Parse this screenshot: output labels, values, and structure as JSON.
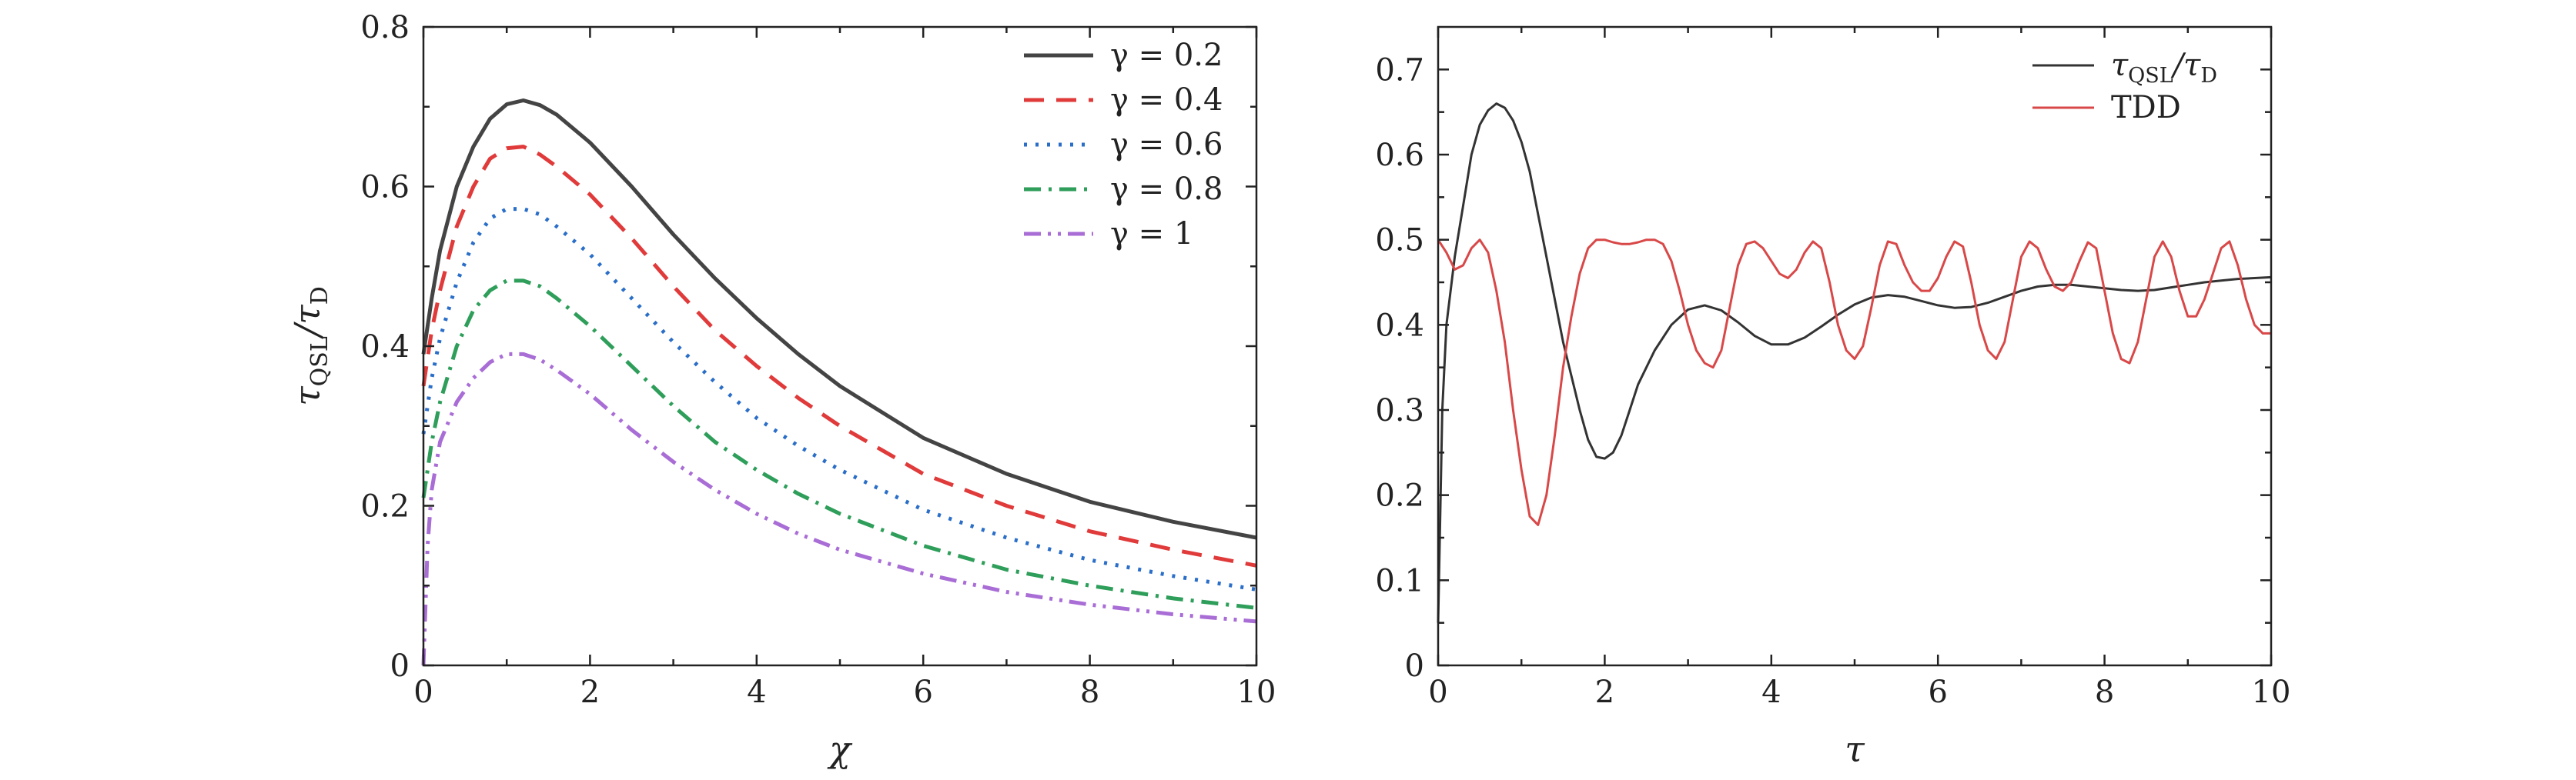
{
  "chart_data": [
    {
      "type": "line",
      "xlabel": "χ",
      "ylabel": "τ_QSL/τ_D",
      "ylabel_main": "τ",
      "ylabel_sub1": "QSL",
      "ylabel_mid": "/τ",
      "ylabel_sub2": "D",
      "xlim": [
        0,
        10
      ],
      "ylim": [
        0,
        0.8
      ],
      "xticks": [
        "0",
        "2",
        "4",
        "6",
        "8",
        "10"
      ],
      "yticks": [
        "0",
        "0.2",
        "0.4",
        "0.6",
        "0.8"
      ],
      "legend_position": "top-right",
      "series": [
        {
          "name": "γ = 0.2",
          "color": "#444444",
          "dash": "solid",
          "x": [
            0,
            0.1,
            0.2,
            0.4,
            0.6,
            0.8,
            1.0,
            1.2,
            1.4,
            1.6,
            2,
            2.5,
            3,
            3.5,
            4,
            4.5,
            5,
            6,
            7,
            8,
            9,
            10
          ],
          "y": [
            0.39,
            0.46,
            0.52,
            0.6,
            0.65,
            0.685,
            0.703,
            0.708,
            0.702,
            0.69,
            0.655,
            0.6,
            0.54,
            0.485,
            0.435,
            0.39,
            0.35,
            0.285,
            0.24,
            0.205,
            0.18,
            0.16
          ]
        },
        {
          "name": "γ = 0.4",
          "color": "#e03a3a",
          "dash": "dashed",
          "x": [
            0,
            0.1,
            0.2,
            0.4,
            0.6,
            0.8,
            1.0,
            1.2,
            1.4,
            1.6,
            2,
            2.5,
            3,
            3.5,
            4,
            4.5,
            5,
            6,
            7,
            8,
            9,
            10
          ],
          "y": [
            0.35,
            0.42,
            0.47,
            0.55,
            0.6,
            0.635,
            0.648,
            0.65,
            0.64,
            0.625,
            0.59,
            0.535,
            0.475,
            0.42,
            0.375,
            0.335,
            0.3,
            0.24,
            0.2,
            0.168,
            0.145,
            0.125
          ]
        },
        {
          "name": "γ = 0.6",
          "color": "#2a6ec8",
          "dash": "dotted",
          "x": [
            0,
            0.1,
            0.2,
            0.4,
            0.6,
            0.8,
            1.0,
            1.2,
            1.4,
            1.6,
            2,
            2.5,
            3,
            3.5,
            4,
            4.5,
            5,
            6,
            7,
            8,
            9,
            10
          ],
          "y": [
            0.29,
            0.36,
            0.41,
            0.48,
            0.53,
            0.56,
            0.572,
            0.572,
            0.565,
            0.55,
            0.515,
            0.46,
            0.405,
            0.355,
            0.31,
            0.275,
            0.245,
            0.195,
            0.16,
            0.132,
            0.112,
            0.095
          ]
        },
        {
          "name": "γ = 0.8",
          "color": "#2e9e5a",
          "dash": "dashdot",
          "x": [
            0,
            0.1,
            0.2,
            0.4,
            0.6,
            0.8,
            1.0,
            1.2,
            1.4,
            1.6,
            2,
            2.5,
            3,
            3.5,
            4,
            4.5,
            5,
            6,
            7,
            8,
            9,
            10
          ],
          "y": [
            0.21,
            0.28,
            0.33,
            0.4,
            0.445,
            0.47,
            0.482,
            0.482,
            0.475,
            0.46,
            0.425,
            0.375,
            0.325,
            0.28,
            0.245,
            0.215,
            0.19,
            0.15,
            0.12,
            0.1,
            0.084,
            0.072
          ]
        },
        {
          "name": "γ = 1",
          "color": "#a96dd6",
          "dash": "dashdotdot",
          "x": [
            0,
            0.05,
            0.1,
            0.2,
            0.4,
            0.6,
            0.8,
            1.0,
            1.2,
            1.4,
            1.6,
            2,
            2.5,
            3,
            3.5,
            4,
            4.5,
            5,
            6,
            7,
            8,
            9,
            10
          ],
          "y": [
            0.0,
            0.15,
            0.22,
            0.28,
            0.33,
            0.36,
            0.38,
            0.39,
            0.39,
            0.383,
            0.37,
            0.34,
            0.295,
            0.255,
            0.22,
            0.19,
            0.165,
            0.145,
            0.115,
            0.092,
            0.076,
            0.064,
            0.055
          ]
        }
      ]
    },
    {
      "type": "line",
      "xlabel": "τ",
      "ylabel": "",
      "xlim": [
        0,
        10
      ],
      "ylim": [
        0,
        0.75
      ],
      "xticks": [
        "0",
        "2",
        "4",
        "6",
        "8",
        "10"
      ],
      "yticks": [
        "0",
        "0.1",
        "0.2",
        "0.3",
        "0.4",
        "0.5",
        "0.6",
        "0.7"
      ],
      "legend_position": "top-right",
      "series": [
        {
          "name": "τ_QSL/τ_D",
          "name_main": "τ",
          "name_sub1": "QSL",
          "name_mid": "/τ",
          "name_sub2": "D",
          "color": "#333333",
          "dash": "solid",
          "x": [
            0,
            0.05,
            0.1,
            0.2,
            0.3,
            0.4,
            0.5,
            0.6,
            0.7,
            0.8,
            0.9,
            1.0,
            1.1,
            1.2,
            1.3,
            1.4,
            1.5,
            1.6,
            1.7,
            1.8,
            1.9,
            2.0,
            2.1,
            2.2,
            2.3,
            2.4,
            2.6,
            2.8,
            3.0,
            3.2,
            3.4,
            3.6,
            3.8,
            4.0,
            4.2,
            4.4,
            4.6,
            4.8,
            5.0,
            5.2,
            5.4,
            5.6,
            5.8,
            6.0,
            6.2,
            6.4,
            6.6,
            6.8,
            7.0,
            7.2,
            7.4,
            7.6,
            7.8,
            8.0,
            8.2,
            8.4,
            8.6,
            8.8,
            9.0,
            9.2,
            9.4,
            9.6,
            9.8,
            10.0
          ],
          "y": [
            0.05,
            0.3,
            0.4,
            0.48,
            0.54,
            0.6,
            0.635,
            0.652,
            0.66,
            0.655,
            0.64,
            0.615,
            0.58,
            0.53,
            0.48,
            0.43,
            0.38,
            0.34,
            0.3,
            0.265,
            0.245,
            0.243,
            0.25,
            0.27,
            0.3,
            0.33,
            0.37,
            0.4,
            0.418,
            0.423,
            0.417,
            0.403,
            0.387,
            0.377,
            0.377,
            0.385,
            0.398,
            0.412,
            0.424,
            0.432,
            0.435,
            0.433,
            0.428,
            0.423,
            0.42,
            0.421,
            0.426,
            0.433,
            0.44,
            0.445,
            0.447,
            0.447,
            0.445,
            0.443,
            0.441,
            0.44,
            0.441,
            0.444,
            0.447,
            0.45,
            0.452,
            0.454,
            0.455,
            0.456
          ]
        },
        {
          "name": "TDD",
          "color": "#d94848",
          "dash": "solid",
          "x": [
            0,
            0.1,
            0.2,
            0.3,
            0.4,
            0.5,
            0.6,
            0.7,
            0.8,
            0.9,
            1.0,
            1.1,
            1.2,
            1.3,
            1.4,
            1.5,
            1.6,
            1.7,
            1.8,
            1.9,
            2.0,
            2.1,
            2.2,
            2.3,
            2.4,
            2.5,
            2.6,
            2.7,
            2.8,
            2.9,
            3.0,
            3.1,
            3.2,
            3.3,
            3.4,
            3.5,
            3.6,
            3.7,
            3.8,
            3.9,
            4.0,
            4.1,
            4.2,
            4.3,
            4.4,
            4.5,
            4.6,
            4.7,
            4.8,
            4.9,
            5.0,
            5.1,
            5.2,
            5.3,
            5.4,
            5.5,
            5.6,
            5.7,
            5.8,
            5.9,
            6.0,
            6.1,
            6.2,
            6.3,
            6.4,
            6.5,
            6.6,
            6.7,
            6.8,
            6.9,
            7.0,
            7.1,
            7.2,
            7.3,
            7.4,
            7.5,
            7.6,
            7.7,
            7.8,
            7.9,
            8.0,
            8.1,
            8.2,
            8.3,
            8.4,
            8.5,
            8.6,
            8.7,
            8.8,
            8.9,
            9.0,
            9.1,
            9.2,
            9.3,
            9.4,
            9.5,
            9.6,
            9.7,
            9.8,
            9.9,
            10.0
          ],
          "y": [
            0.5,
            0.485,
            0.465,
            0.47,
            0.49,
            0.5,
            0.485,
            0.44,
            0.38,
            0.3,
            0.23,
            0.175,
            0.165,
            0.2,
            0.27,
            0.35,
            0.41,
            0.46,
            0.49,
            0.5,
            0.5,
            0.497,
            0.495,
            0.495,
            0.497,
            0.5,
            0.5,
            0.495,
            0.475,
            0.44,
            0.4,
            0.37,
            0.355,
            0.35,
            0.37,
            0.42,
            0.47,
            0.495,
            0.498,
            0.49,
            0.475,
            0.46,
            0.455,
            0.465,
            0.485,
            0.498,
            0.49,
            0.45,
            0.4,
            0.37,
            0.36,
            0.375,
            0.42,
            0.47,
            0.498,
            0.495,
            0.47,
            0.45,
            0.44,
            0.44,
            0.455,
            0.48,
            0.498,
            0.492,
            0.45,
            0.4,
            0.37,
            0.36,
            0.38,
            0.43,
            0.48,
            0.498,
            0.49,
            0.465,
            0.445,
            0.44,
            0.45,
            0.475,
            0.497,
            0.49,
            0.44,
            0.39,
            0.36,
            0.355,
            0.38,
            0.43,
            0.48,
            0.498,
            0.48,
            0.44,
            0.41,
            0.41,
            0.43,
            0.46,
            0.49,
            0.498,
            0.47,
            0.43,
            0.4,
            0.39,
            0.39
          ]
        }
      ]
    }
  ]
}
